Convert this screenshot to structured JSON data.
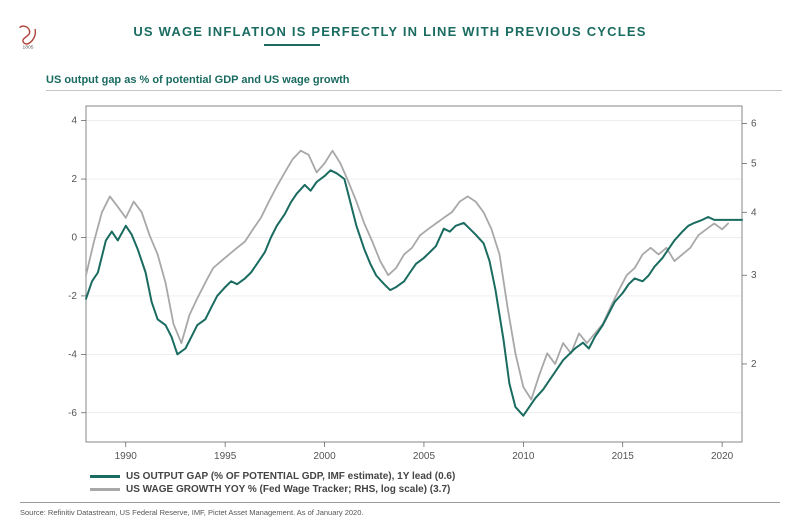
{
  "title": "US WAGE INFLATION IS PERFECTLY IN LINE WITH PREVIOUS CYCLES",
  "title_color": "#1a6b60",
  "title_fontsize": 13,
  "subtitle": "US output gap as % of potential GDP and US wage growth",
  "subtitle_color": "#1a6b60",
  "legend": {
    "series1": "US OUTPUT GAP (% OF POTENTIAL GDP, IMF estimate), 1Y lead (0.6)",
    "series2": "US WAGE GROWTH YOY % (Fed Wage Tracker; RHS, log scale) (3.7)"
  },
  "source": "Source: Refinitiv Datastream, US Federal Reserve, IMF, Pictet Asset Management. As of January 2020.",
  "chart": {
    "type": "line",
    "background_color": "#ffffff",
    "grid_color": "#e8e8e8",
    "axis_color": "#555555",
    "x": {
      "min": 1988,
      "max": 2021,
      "ticks": [
        1990,
        1995,
        2000,
        2005,
        2010,
        2015,
        2020
      ]
    },
    "y_left": {
      "min": -7,
      "max": 4.5,
      "ticks": [
        -6,
        -4,
        -2,
        0,
        2,
        4
      ],
      "label": ""
    },
    "y_right": {
      "min": 1.4,
      "max": 6.5,
      "ticks": [
        2,
        3,
        4,
        5,
        6
      ],
      "log": true,
      "label": ""
    },
    "series": [
      {
        "name": "output_gap",
        "axis": "left",
        "color": "#1a6b60",
        "width": 2.0,
        "points": [
          [
            1988.0,
            -2.1
          ],
          [
            1988.3,
            -1.5
          ],
          [
            1988.6,
            -1.2
          ],
          [
            1989.0,
            -0.1
          ],
          [
            1989.3,
            0.2
          ],
          [
            1989.6,
            -0.1
          ],
          [
            1990.0,
            0.4
          ],
          [
            1990.3,
            0.1
          ],
          [
            1990.6,
            -0.4
          ],
          [
            1991.0,
            -1.2
          ],
          [
            1991.3,
            -2.2
          ],
          [
            1991.6,
            -2.8
          ],
          [
            1992.0,
            -3.0
          ],
          [
            1992.3,
            -3.4
          ],
          [
            1992.6,
            -4.0
          ],
          [
            1993.0,
            -3.8
          ],
          [
            1993.3,
            -3.4
          ],
          [
            1993.6,
            -3.0
          ],
          [
            1994.0,
            -2.8
          ],
          [
            1994.3,
            -2.4
          ],
          [
            1994.6,
            -2.0
          ],
          [
            1995.0,
            -1.7
          ],
          [
            1995.3,
            -1.5
          ],
          [
            1995.6,
            -1.6
          ],
          [
            1996.0,
            -1.4
          ],
          [
            1996.3,
            -1.2
          ],
          [
            1996.6,
            -0.9
          ],
          [
            1997.0,
            -0.5
          ],
          [
            1997.3,
            0.0
          ],
          [
            1997.6,
            0.4
          ],
          [
            1998.0,
            0.8
          ],
          [
            1998.3,
            1.2
          ],
          [
            1998.6,
            1.5
          ],
          [
            1999.0,
            1.8
          ],
          [
            1999.3,
            1.6
          ],
          [
            1999.6,
            1.9
          ],
          [
            2000.0,
            2.1
          ],
          [
            2000.3,
            2.3
          ],
          [
            2000.6,
            2.2
          ],
          [
            2001.0,
            2.0
          ],
          [
            2001.3,
            1.2
          ],
          [
            2001.6,
            0.4
          ],
          [
            2002.0,
            -0.4
          ],
          [
            2002.3,
            -0.9
          ],
          [
            2002.6,
            -1.3
          ],
          [
            2003.0,
            -1.6
          ],
          [
            2003.3,
            -1.8
          ],
          [
            2003.6,
            -1.7
          ],
          [
            2004.0,
            -1.5
          ],
          [
            2004.3,
            -1.2
          ],
          [
            2004.6,
            -0.9
          ],
          [
            2005.0,
            -0.7
          ],
          [
            2005.3,
            -0.5
          ],
          [
            2005.6,
            -0.3
          ],
          [
            2006.0,
            0.3
          ],
          [
            2006.3,
            0.2
          ],
          [
            2006.6,
            0.4
          ],
          [
            2007.0,
            0.5
          ],
          [
            2007.3,
            0.3
          ],
          [
            2007.6,
            0.1
          ],
          [
            2008.0,
            -0.2
          ],
          [
            2008.3,
            -0.8
          ],
          [
            2008.6,
            -1.8
          ],
          [
            2009.0,
            -3.5
          ],
          [
            2009.3,
            -5.0
          ],
          [
            2009.6,
            -5.8
          ],
          [
            2010.0,
            -6.1
          ],
          [
            2010.3,
            -5.8
          ],
          [
            2010.6,
            -5.5
          ],
          [
            2011.0,
            -5.2
          ],
          [
            2011.3,
            -4.9
          ],
          [
            2011.6,
            -4.6
          ],
          [
            2012.0,
            -4.2
          ],
          [
            2012.3,
            -4.0
          ],
          [
            2012.6,
            -3.8
          ],
          [
            2013.0,
            -3.6
          ],
          [
            2013.3,
            -3.8
          ],
          [
            2013.6,
            -3.4
          ],
          [
            2014.0,
            -3.0
          ],
          [
            2014.3,
            -2.6
          ],
          [
            2014.6,
            -2.2
          ],
          [
            2015.0,
            -1.9
          ],
          [
            2015.3,
            -1.6
          ],
          [
            2015.6,
            -1.4
          ],
          [
            2016.0,
            -1.5
          ],
          [
            2016.3,
            -1.3
          ],
          [
            2016.6,
            -1.0
          ],
          [
            2017.0,
            -0.7
          ],
          [
            2017.3,
            -0.4
          ],
          [
            2017.6,
            -0.1
          ],
          [
            2018.0,
            0.2
          ],
          [
            2018.3,
            0.4
          ],
          [
            2018.6,
            0.5
          ],
          [
            2019.0,
            0.6
          ],
          [
            2019.3,
            0.7
          ],
          [
            2019.6,
            0.6
          ],
          [
            2020.0,
            0.6
          ],
          [
            2020.3,
            0.6
          ],
          [
            2020.6,
            0.6
          ],
          [
            2021.0,
            0.6
          ]
        ]
      },
      {
        "name": "wage_growth",
        "axis": "right",
        "color": "#a8a8a8",
        "width": 1.8,
        "points": [
          [
            1988.0,
            3.0
          ],
          [
            1988.4,
            3.5
          ],
          [
            1988.8,
            4.0
          ],
          [
            1989.2,
            4.3
          ],
          [
            1989.6,
            4.1
          ],
          [
            1990.0,
            3.9
          ],
          [
            1990.4,
            4.2
          ],
          [
            1990.8,
            4.0
          ],
          [
            1991.2,
            3.6
          ],
          [
            1991.6,
            3.3
          ],
          [
            1992.0,
            2.9
          ],
          [
            1992.4,
            2.4
          ],
          [
            1992.8,
            2.2
          ],
          [
            1993.2,
            2.5
          ],
          [
            1993.6,
            2.7
          ],
          [
            1994.0,
            2.9
          ],
          [
            1994.4,
            3.1
          ],
          [
            1994.8,
            3.2
          ],
          [
            1995.2,
            3.3
          ],
          [
            1995.6,
            3.4
          ],
          [
            1996.0,
            3.5
          ],
          [
            1996.4,
            3.7
          ],
          [
            1996.8,
            3.9
          ],
          [
            1997.2,
            4.2
          ],
          [
            1997.6,
            4.5
          ],
          [
            1998.0,
            4.8
          ],
          [
            1998.4,
            5.1
          ],
          [
            1998.8,
            5.3
          ],
          [
            1999.2,
            5.2
          ],
          [
            1999.6,
            4.8
          ],
          [
            2000.0,
            5.0
          ],
          [
            2000.4,
            5.3
          ],
          [
            2000.8,
            5.0
          ],
          [
            2001.2,
            4.6
          ],
          [
            2001.6,
            4.2
          ],
          [
            2002.0,
            3.8
          ],
          [
            2002.4,
            3.5
          ],
          [
            2002.8,
            3.2
          ],
          [
            2003.2,
            3.0
          ],
          [
            2003.6,
            3.1
          ],
          [
            2004.0,
            3.3
          ],
          [
            2004.4,
            3.4
          ],
          [
            2004.8,
            3.6
          ],
          [
            2005.2,
            3.7
          ],
          [
            2005.6,
            3.8
          ],
          [
            2006.0,
            3.9
          ],
          [
            2006.4,
            4.0
          ],
          [
            2006.8,
            4.2
          ],
          [
            2007.2,
            4.3
          ],
          [
            2007.6,
            4.2
          ],
          [
            2008.0,
            4.0
          ],
          [
            2008.4,
            3.7
          ],
          [
            2008.8,
            3.3
          ],
          [
            2009.2,
            2.6
          ],
          [
            2009.6,
            2.1
          ],
          [
            2010.0,
            1.8
          ],
          [
            2010.4,
            1.7
          ],
          [
            2010.8,
            1.9
          ],
          [
            2011.2,
            2.1
          ],
          [
            2011.6,
            2.0
          ],
          [
            2012.0,
            2.2
          ],
          [
            2012.4,
            2.1
          ],
          [
            2012.8,
            2.3
          ],
          [
            2013.2,
            2.2
          ],
          [
            2013.6,
            2.3
          ],
          [
            2014.0,
            2.4
          ],
          [
            2014.4,
            2.6
          ],
          [
            2014.8,
            2.8
          ],
          [
            2015.2,
            3.0
          ],
          [
            2015.6,
            3.1
          ],
          [
            2016.0,
            3.3
          ],
          [
            2016.4,
            3.4
          ],
          [
            2016.8,
            3.3
          ],
          [
            2017.2,
            3.4
          ],
          [
            2017.6,
            3.2
          ],
          [
            2018.0,
            3.3
          ],
          [
            2018.4,
            3.4
          ],
          [
            2018.8,
            3.6
          ],
          [
            2019.2,
            3.7
          ],
          [
            2019.6,
            3.8
          ],
          [
            2020.0,
            3.7
          ],
          [
            2020.3,
            3.8
          ]
        ]
      }
    ]
  }
}
